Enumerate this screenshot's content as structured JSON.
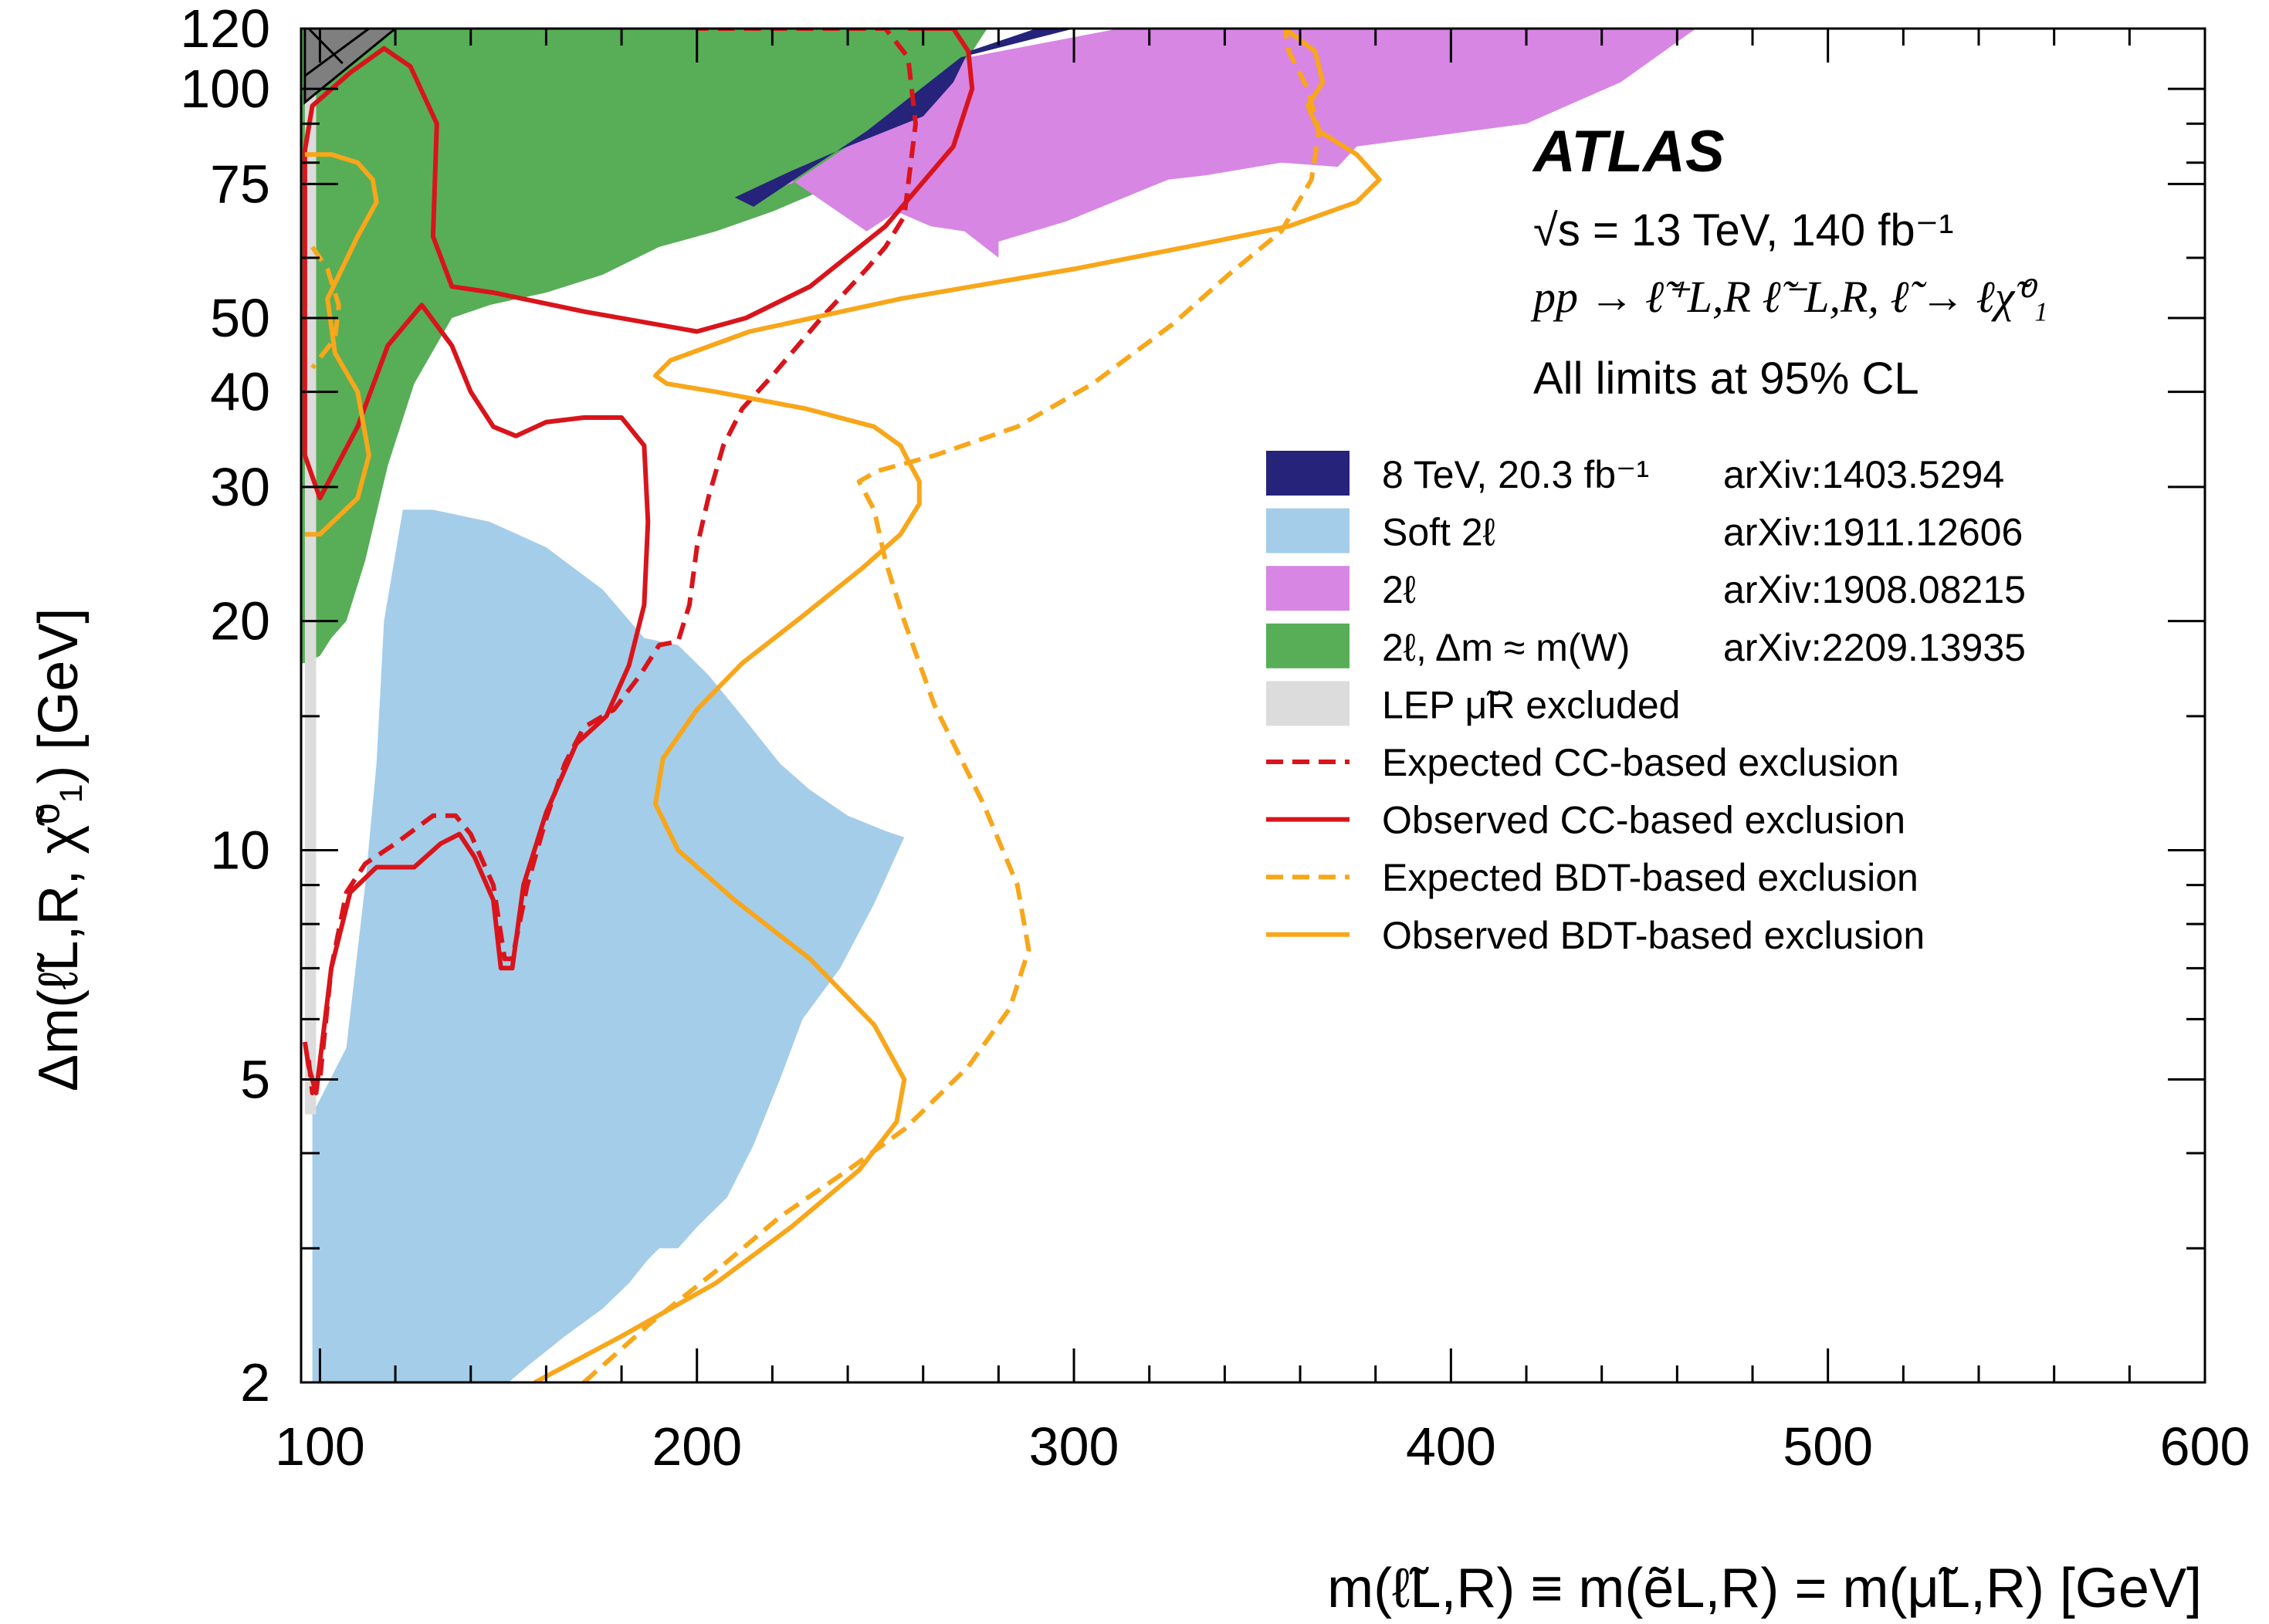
{
  "chart_data": {
    "type": "area",
    "title": "",
    "experiment_label": "ATLAS",
    "info_lines": [
      "√s = 13 TeV, 140 fb⁻¹",
      "pp → ℓ̃⁺L,R ℓ̃⁻L,R, ℓ̃ → ℓχ̃⁰₁",
      "All limits at 95% CL"
    ],
    "xlabel": "m(ℓ̃L,R) ≡ m(ẽL,R) = m(μ̃L,R) [GeV]",
    "ylabel": "Δm(ℓ̃L,R, χ̃⁰₁) [GeV]",
    "xlim": [
      95,
      600
    ],
    "ylim": [
      2,
      120
    ],
    "yscale": "log",
    "x_ticks": [
      100,
      200,
      300,
      400,
      500,
      600
    ],
    "x_tick_labels": [
      "100",
      "200",
      "300",
      "400",
      "500",
      "600"
    ],
    "y_ticks": [
      2,
      5,
      10,
      20,
      30,
      40,
      50,
      75,
      100,
      120
    ],
    "y_tick_labels": [
      "2",
      "5",
      "10",
      "20",
      "30",
      "40",
      "50",
      "75",
      "100",
      "120"
    ],
    "grid": false,
    "legend_position": "center-right",
    "series": [
      {
        "name": "8 TeV, 20.3 fb⁻¹",
        "ref": "arXiv:1403.5294",
        "kind": "region",
        "color": "#25237a",
        "x": [
          210,
          225,
          240,
          260,
          268,
          272,
          290,
          300,
          270,
          245,
          215
        ],
        "y": [
          72,
          78,
          84,
          92,
          102,
          112,
          120,
          120,
          110,
          88,
          70
        ]
      },
      {
        "name": "Soft 2ℓ",
        "ref": "arXiv:1911.12606",
        "kind": "region",
        "color": "#a4cde9",
        "x": [
          98,
          107,
          112,
          115,
          117,
          122,
          130,
          145,
          160,
          175,
          186,
          195,
          203,
          212,
          222,
          230,
          240,
          250,
          255,
          247,
          238,
          228,
          222,
          215,
          208,
          200,
          195,
          190,
          187,
          182,
          175,
          165,
          155,
          150,
          98
        ],
        "y": [
          4.5,
          5.5,
          9,
          13,
          20,
          28,
          28,
          27,
          25,
          22,
          19,
          18.6,
          17,
          15,
          13,
          12,
          11.1,
          10.6,
          10.4,
          8.5,
          7,
          6,
          5,
          4.1,
          3.5,
          3.2,
          3.0,
          3.0,
          2.9,
          2.7,
          2.5,
          2.3,
          2.1,
          2.0,
          2.0
        ]
      },
      {
        "name": "2ℓ",
        "ref": "arXiv:1908.08215",
        "kind": "region",
        "color": "#d786e4",
        "x": [
          213,
          225,
          245,
          253,
          262,
          271,
          280,
          280,
          298,
          325,
          335,
          355,
          370,
          375,
          420,
          445,
          465,
          342,
          312,
          272,
          250,
          240,
          225
        ],
        "y": [
          73,
          76,
          65,
          69,
          66,
          65,
          60,
          63,
          67,
          76,
          77,
          80,
          79,
          84,
          90,
          102,
          120,
          120,
          120,
          110,
          92,
          84,
          75
        ]
      },
      {
        "name": "2ℓ, Δm ≈ m(W)",
        "ref": "arXiv:2209.13935",
        "kind": "region",
        "color": "#57ae57",
        "x": [
          96,
          96,
          105,
          110,
          115,
          125,
          135,
          150,
          180,
          200,
          215,
          235,
          255,
          262,
          272,
          277,
          120
        ],
        "y": [
          17.6,
          120,
          120,
          120,
          120,
          120,
          120,
          120,
          120,
          120,
          120,
          120,
          120,
          120,
          120,
          120,
          120
        ],
        "lower_boundary_x": [
          96,
          100,
          103,
          107,
          112,
          118,
          125,
          135,
          145,
          160,
          175,
          190,
          205,
          220,
          240,
          255,
          265,
          272,
          277
        ],
        "lower_boundary_y": [
          17.6,
          18,
          19,
          20,
          24,
          32,
          41,
          50,
          52,
          54,
          57,
          62,
          65,
          69,
          76,
          84,
          96,
          110,
          120
        ]
      },
      {
        "name": "LEP μ̃R excluded",
        "kind": "region",
        "color": "#dcdcdc",
        "x": [
          96,
          99,
          99,
          96
        ],
        "y": [
          4.5,
          4.5,
          120,
          120
        ]
      },
      {
        "name": "Expected CC-based exclusion",
        "kind": "line",
        "color": "#d9141b",
        "style": "dashed",
        "x": [
          97,
          98,
          100,
          103,
          107,
          112,
          120,
          130,
          136,
          140,
          146,
          149,
          151,
          155,
          160,
          165,
          170,
          178,
          185,
          190,
          195,
          198,
          200,
          203,
          207,
          212,
          220,
          233,
          245,
          250,
          255,
          258,
          256,
          250,
          240,
          225,
          215,
          200
        ],
        "y": [
          5.3,
          4.8,
          5.0,
          7.0,
          8.8,
          9.6,
          10.2,
          11.1,
          11.1,
          10.5,
          9.0,
          7.2,
          7.2,
          9.0,
          11.0,
          13.0,
          14.5,
          15.3,
          17.0,
          18.6,
          18.8,
          21,
          25,
          29,
          34,
          38,
          42,
          50,
          58,
          62,
          68,
          90,
          110,
          120,
          120,
          120,
          120,
          120
        ]
      },
      {
        "name": "Observed CC-based exclusion",
        "kind": "line",
        "color": "#d9141b",
        "style": "solid",
        "x": [
          96,
          97,
          99,
          103,
          108,
          115,
          125,
          132,
          137,
          141,
          146,
          148,
          151,
          154,
          160,
          168,
          176,
          182,
          186,
          187,
          186,
          180,
          170,
          160,
          152,
          146,
          140,
          135,
          127,
          118,
          110,
          100,
          96,
          96,
          98,
          108,
          117,
          124,
          131,
          130,
          135,
          146,
          170,
          200,
          213,
          230,
          250,
          268,
          273,
          272,
          268,
          260,
          256
        ],
        "y": [
          5.6,
          5.2,
          4.8,
          7.0,
          8.8,
          9.5,
          9.5,
          10.2,
          10.5,
          9.8,
          8.6,
          7.0,
          7.0,
          9.0,
          11.2,
          13.8,
          15.0,
          17.5,
          21,
          27,
          34,
          37,
          37,
          36.5,
          35,
          36,
          40,
          46,
          52,
          46,
          36,
          29,
          33,
          83,
          95,
          105,
          113,
          107,
          90,
          64,
          55,
          54,
          51,
          48,
          50,
          55,
          66,
          84,
          100,
          112,
          120,
          120,
          120
        ]
      },
      {
        "name": "Expected BDT-based exclusion",
        "kind": "line",
        "color": "#f8a61a",
        "style": "dashed",
        "x": [
          170,
          188,
          205,
          222,
          240,
          255,
          272,
          283,
          288,
          285,
          276,
          263,
          255,
          250,
          247,
          243,
          248,
          263,
          285,
          305,
          326,
          341,
          355,
          363,
          365,
          362,
          357,
          356
        ],
        "y": [
          2.0,
          2.4,
          2.8,
          3.3,
          3.8,
          4.3,
          5.2,
          6.2,
          7.4,
          9.0,
          11.5,
          15.5,
          20,
          24,
          28,
          30.5,
          31.5,
          33,
          36,
          41,
          49,
          57,
          65,
          76,
          88,
          100,
          112,
          120
        ]
      },
      {
        "name": "Observed BDT-based exclusion",
        "kind": "line",
        "color": "#f8a61a",
        "style": "solid",
        "x": [
          157,
          180,
          205,
          225,
          243,
          253,
          255,
          247,
          230,
          210,
          195,
          189,
          191,
          200,
          212,
          228,
          244,
          254,
          259,
          259,
          256,
          254,
          247,
          229,
          205,
          192,
          189,
          193,
          214,
          254,
          300,
          330,
          357,
          375,
          381,
          375,
          365,
          362,
          366,
          364,
          356
        ],
        "y": [
          2.0,
          2.3,
          2.7,
          3.2,
          3.8,
          4.4,
          5.0,
          5.9,
          7.2,
          8.6,
          10.0,
          11.5,
          13.2,
          15.3,
          17.6,
          20.3,
          23.5,
          26,
          28.5,
          30.5,
          32.5,
          34,
          36,
          38,
          40,
          41,
          42,
          44,
          48,
          53,
          58,
          62,
          66,
          71,
          76,
          82,
          88,
          95,
          102,
          112,
          120
        ]
      },
      {
        "name": "",
        "kind": "line",
        "color": "#f8a61a",
        "style": "dashed",
        "x": [
          98,
          102,
          105,
          104,
          101,
          98
        ],
        "y": [
          62,
          58,
          52,
          47,
          45,
          43
        ]
      },
      {
        "name": "",
        "kind": "line",
        "color": "#f8a61a",
        "style": "solid",
        "x": [
          96,
          100,
          110,
          113,
          110,
          104,
          102,
          110,
          115,
          114,
          110,
          103,
          96
        ],
        "y": [
          26,
          26,
          29,
          33,
          40,
          45,
          53,
          64,
          71,
          76,
          80,
          82,
          82
        ]
      }
    ],
    "kinematic_region": {
      "color": "#7f7f7f",
      "x": [
        96,
        96,
        120
      ],
      "y": [
        96,
        120,
        120
      ]
    }
  },
  "legend_entries": [
    {
      "label": "8 TeV, 20.3 fb⁻¹",
      "ref": "arXiv:1403.5294"
    },
    {
      "label": "Soft 2ℓ",
      "ref": "arXiv:1911.12606"
    },
    {
      "label": "2ℓ",
      "ref": "arXiv:1908.08215"
    },
    {
      "label": "2ℓ, Δm ≈ m(W)",
      "ref": "arXiv:2209.13935"
    },
    {
      "label": "LEP μ̃R excluded",
      "ref": ""
    },
    {
      "label": "Expected CC-based exclusion",
      "ref": ""
    },
    {
      "label": "Observed CC-based exclusion",
      "ref": ""
    },
    {
      "label": "Expected BDT-based exclusion",
      "ref": ""
    },
    {
      "label": "Observed BDT-based exclusion",
      "ref": ""
    }
  ]
}
